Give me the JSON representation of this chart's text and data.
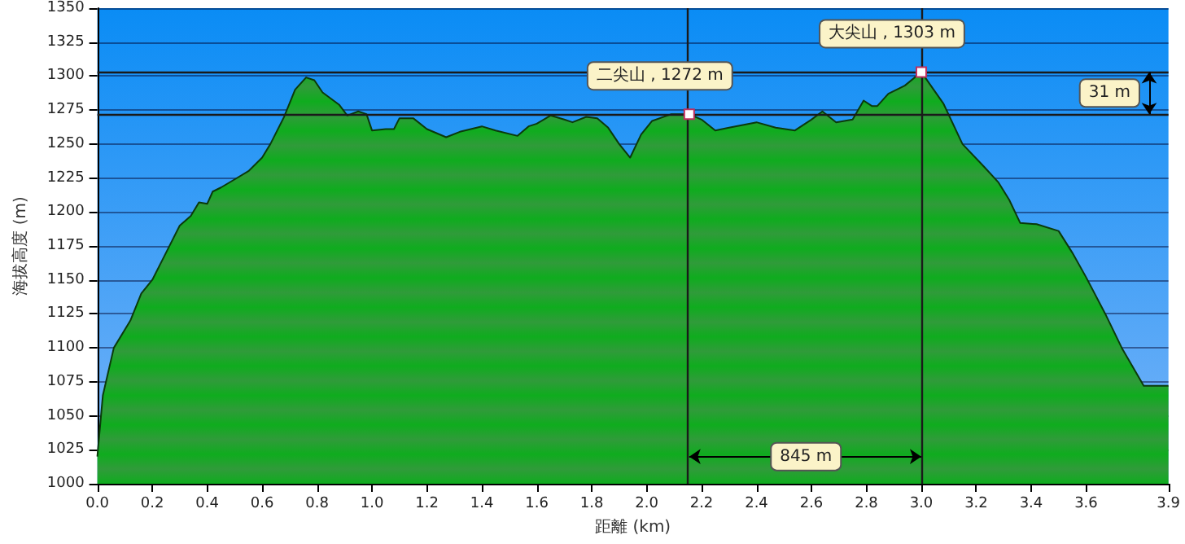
{
  "chart_data": {
    "type": "area",
    "xlabel": "距離 (km)",
    "ylabel": "海拔高度 (m)",
    "x": [
      0,
      0.02,
      0.06,
      0.12,
      0.16,
      0.2,
      0.25,
      0.3,
      0.34,
      0.37,
      0.4,
      0.42,
      0.45,
      0.5,
      0.55,
      0.6,
      0.63,
      0.68,
      0.72,
      0.76,
      0.79,
      0.82,
      0.88,
      0.91,
      0.95,
      0.98,
      1.0,
      1.05,
      1.08,
      1.1,
      1.15,
      1.2,
      1.27,
      1.32,
      1.4,
      1.45,
      1.53,
      1.57,
      1.6,
      1.65,
      1.7,
      1.73,
      1.78,
      1.82,
      1.86,
      1.9,
      1.94,
      1.98,
      2.02,
      2.09,
      2.155,
      2.2,
      2.25,
      2.3,
      2.4,
      2.47,
      2.54,
      2.6,
      2.64,
      2.69,
      2.72,
      2.75,
      2.79,
      2.82,
      2.84,
      2.88,
      2.94,
      3.0,
      3.08,
      3.15,
      3.23,
      3.28,
      3.32,
      3.36,
      3.42,
      3.5,
      3.55,
      3.6,
      3.67,
      3.73,
      3.81,
      3.9
    ],
    "series": [
      {
        "color": "#0c8a18",
        "values": [
          1020,
          1065,
          1100,
          1120,
          1140,
          1150,
          1170,
          1190,
          1197,
          1207,
          1206,
          1215,
          1218,
          1224,
          1230,
          1240,
          1250,
          1270,
          1290,
          1299,
          1297,
          1288,
          1279,
          1271,
          1274,
          1272,
          1260,
          1261,
          1261,
          1269,
          1269,
          1261,
          1255,
          1259,
          1263,
          1260,
          1256,
          1263,
          1265,
          1271,
          1268,
          1266,
          1270,
          1269,
          1262,
          1250,
          1240,
          1257,
          1267,
          1272,
          1272,
          1268,
          1260,
          1262,
          1266,
          1262,
          1260,
          1268,
          1274,
          1266,
          1267,
          1268,
          1282,
          1278,
          1278,
          1287,
          1293,
          1303,
          1280,
          1250,
          1233,
          1222,
          1209,
          1192,
          1191,
          1186,
          1170,
          1152,
          1125,
          1100,
          1072,
          1072
        ]
      }
    ],
    "xlim": [
      0,
      3.9
    ],
    "xticks": [
      {
        "value": 0,
        "label": "0.0"
      },
      0.2,
      0.4,
      0.6,
      0.8,
      {
        "value": 1,
        "label": "1.0"
      },
      1.2,
      1.4,
      1.6,
      1.8,
      {
        "value": 2,
        "label": "2.0"
      },
      2.2,
      2.4,
      2.6,
      2.8,
      {
        "value": 3,
        "label": "3.0"
      },
      3.2,
      3.4,
      3.6,
      3.9
    ],
    "ylim": [
      1000,
      1350
    ],
    "yticks": [
      1000,
      1025,
      1050,
      1075,
      1100,
      1125,
      1150,
      1175,
      1200,
      1225,
      1250,
      1275,
      1300,
      1325,
      1350
    ],
    "grid": "y",
    "ref_lines": [
      {
        "axis": "y",
        "value": 1303,
        "color": "#1a1a1a"
      },
      {
        "axis": "y",
        "value": 1272,
        "color": "#1a1a1a"
      },
      {
        "axis": "x",
        "value": 2.155,
        "color": "#1a1a1a"
      },
      {
        "axis": "x",
        "value": 3.0,
        "color": "#1a1a1a"
      }
    ],
    "annotations": [
      {
        "text": "二尖山 , 1272 m",
        "x": 2.155,
        "y": 1272
      },
      {
        "text": "大尖山 , 1303 m",
        "x": 3.0,
        "y": 1303
      },
      {
        "text": "845 m",
        "x": 2.58,
        "y": 1020
      },
      "31 m"
    ]
  }
}
